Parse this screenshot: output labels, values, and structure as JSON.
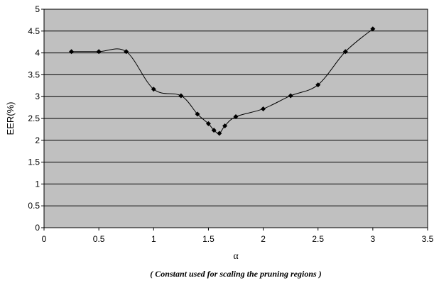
{
  "chart_data": {
    "type": "line",
    "xlabel": "α",
    "xlabel_note": "( Constant used for scaling the pruning regions )",
    "ylabel": "EER(%)",
    "xlim": [
      0,
      3.5
    ],
    "ylim": [
      0,
      5
    ],
    "x_ticks": [
      "0",
      "0.5",
      "1",
      "1.5",
      "2",
      "2.5",
      "3",
      "3.5"
    ],
    "y_ticks": [
      "0",
      "0.5",
      "1",
      "1.5",
      "2",
      "2.5",
      "3",
      "3.5",
      "4",
      "4.5",
      "5"
    ],
    "grid": "horizontal",
    "smoothed": true,
    "colors": {
      "plot_background": "#c0c0c0",
      "line": "#000000",
      "gridline": "#000000"
    },
    "series": [
      {
        "x": [
          0.25,
          0.5,
          0.75,
          1.0,
          1.25,
          1.4,
          1.5,
          1.55,
          1.6,
          1.65,
          1.75,
          2.0,
          2.25,
          2.5,
          2.75,
          3.0
        ],
        "values": [
          4.03,
          4.03,
          4.03,
          3.17,
          3.02,
          2.6,
          2.38,
          2.23,
          2.16,
          2.33,
          2.54,
          2.72,
          3.02,
          3.27,
          4.03,
          4.55
        ]
      }
    ]
  }
}
